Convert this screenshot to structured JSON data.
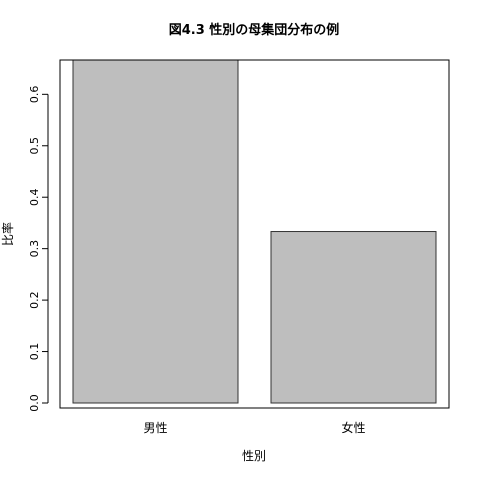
{
  "chart_data": {
    "type": "bar",
    "title": "図4.3 性別の母集団分布の例",
    "xlabel": "性別",
    "ylabel": "比率",
    "categories": [
      "男性",
      "女性"
    ],
    "values": [
      0.6667,
      0.3333
    ],
    "ylim": [
      0,
      0.6667
    ],
    "yticks": [
      "0.0",
      "0.1",
      "0.2",
      "0.3",
      "0.4",
      "0.5",
      "0.6"
    ],
    "grid": false,
    "bar_color": "#bebebe",
    "bar_border_color": "#333333"
  }
}
